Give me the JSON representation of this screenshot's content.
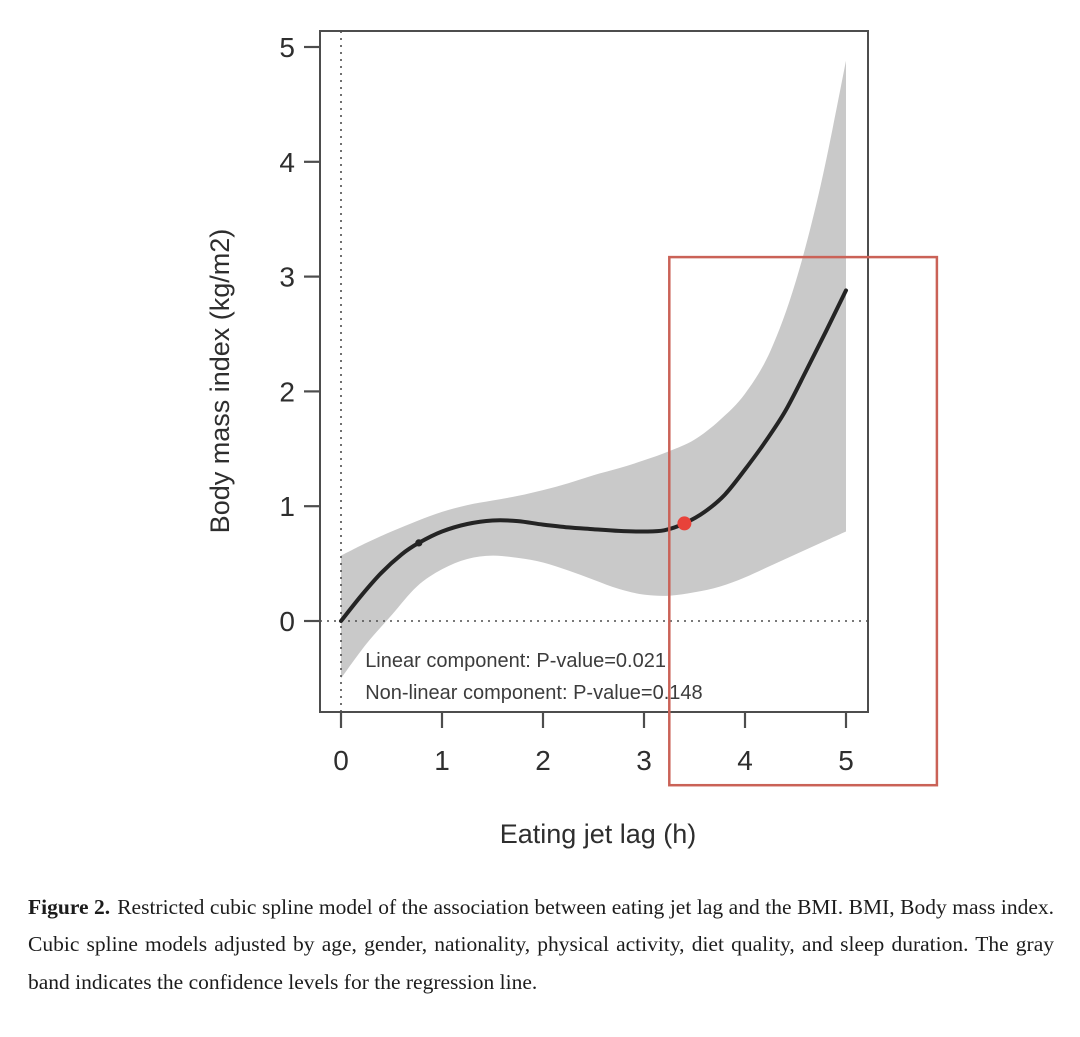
{
  "caption": {
    "label": "Figure 2.",
    "text": "Restricted cubic spline model of the association between eating jet lag and the BMI. BMI, Body mass index.  Cubic spline models adjusted by age, gender, nationality, physical activity, diet quality, and sleep duration. The gray band indicates the confidence levels for the regression line."
  },
  "chart_data": {
    "type": "line",
    "title": "",
    "xlabel": "Eating jet lag (h)",
    "ylabel": "Body mass index (kg/m2)",
    "xlim": [
      -0.23,
      5.22
    ],
    "ylim": [
      -0.83,
      5.15
    ],
    "x_ticks": [
      0,
      1,
      2,
      3,
      4,
      5
    ],
    "y_ticks": [
      0,
      1,
      2,
      3,
      4,
      5
    ],
    "grid": false,
    "legend": "none",
    "reference_lines": [
      {
        "axis": "vertical",
        "value": 0,
        "style": "dotted"
      },
      {
        "axis": "horizontal",
        "value": 0,
        "style": "dotted"
      }
    ],
    "series": [
      {
        "name": "Restricted cubic spline: BMI vs eating jet lag",
        "x": [
          0,
          0.2,
          0.4,
          0.6,
          0.77,
          1.0,
          1.25,
          1.5,
          1.75,
          2.0,
          2.25,
          2.5,
          2.75,
          3.0,
          3.2,
          3.4,
          3.6,
          3.8,
          4.0,
          4.2,
          4.4,
          4.6,
          4.8,
          5.0
        ],
        "y": [
          0,
          0.22,
          0.42,
          0.58,
          0.68,
          0.78,
          0.845,
          0.875,
          0.87,
          0.84,
          0.815,
          0.8,
          0.785,
          0.78,
          0.79,
          0.85,
          0.95,
          1.1,
          1.32,
          1.56,
          1.83,
          2.17,
          2.52,
          2.88
        ]
      }
    ],
    "confidence_band": {
      "label": "Confidence levels for the regression line",
      "x": [
        0,
        0.25,
        0.5,
        0.75,
        1.0,
        1.25,
        1.5,
        1.75,
        2.0,
        2.25,
        2.5,
        2.75,
        3.0,
        3.25,
        3.5,
        3.75,
        4.0,
        4.25,
        4.5,
        4.75,
        5.0
      ],
      "upper": [
        0.57,
        0.68,
        0.78,
        0.87,
        0.95,
        1.01,
        1.05,
        1.09,
        1.14,
        1.2,
        1.27,
        1.33,
        1.4,
        1.48,
        1.58,
        1.75,
        1.98,
        2.35,
        2.95,
        3.8,
        4.88
      ],
      "lower": [
        -0.5,
        -0.2,
        0.05,
        0.3,
        0.45,
        0.54,
        0.57,
        0.55,
        0.51,
        0.44,
        0.36,
        0.28,
        0.23,
        0.22,
        0.25,
        0.3,
        0.38,
        0.48,
        0.58,
        0.68,
        0.78
      ]
    },
    "annotations": [
      {
        "text": "Linear component: P-value=0.021",
        "x": 0.24,
        "y": -0.34
      },
      {
        "text": "Non-linear component: P-value=0.148",
        "x": 0.24,
        "y": -0.62
      }
    ],
    "highlight_point": {
      "x": 3.4,
      "y": 0.85
    },
    "knot_mark": {
      "x": 0.77,
      "y": 0.68
    },
    "highlight_box": {
      "x0": 3.25,
      "y0": -1.43,
      "x1": 5.9,
      "y1": 3.17
    },
    "colors": {
      "curve": "#242424",
      "band": "#c9c9c9",
      "axis": "#4d4d4d",
      "annotation_text": "#3c3c3c",
      "highlight_point": "#e8423a",
      "highlight_box": "#ca6257"
    }
  }
}
